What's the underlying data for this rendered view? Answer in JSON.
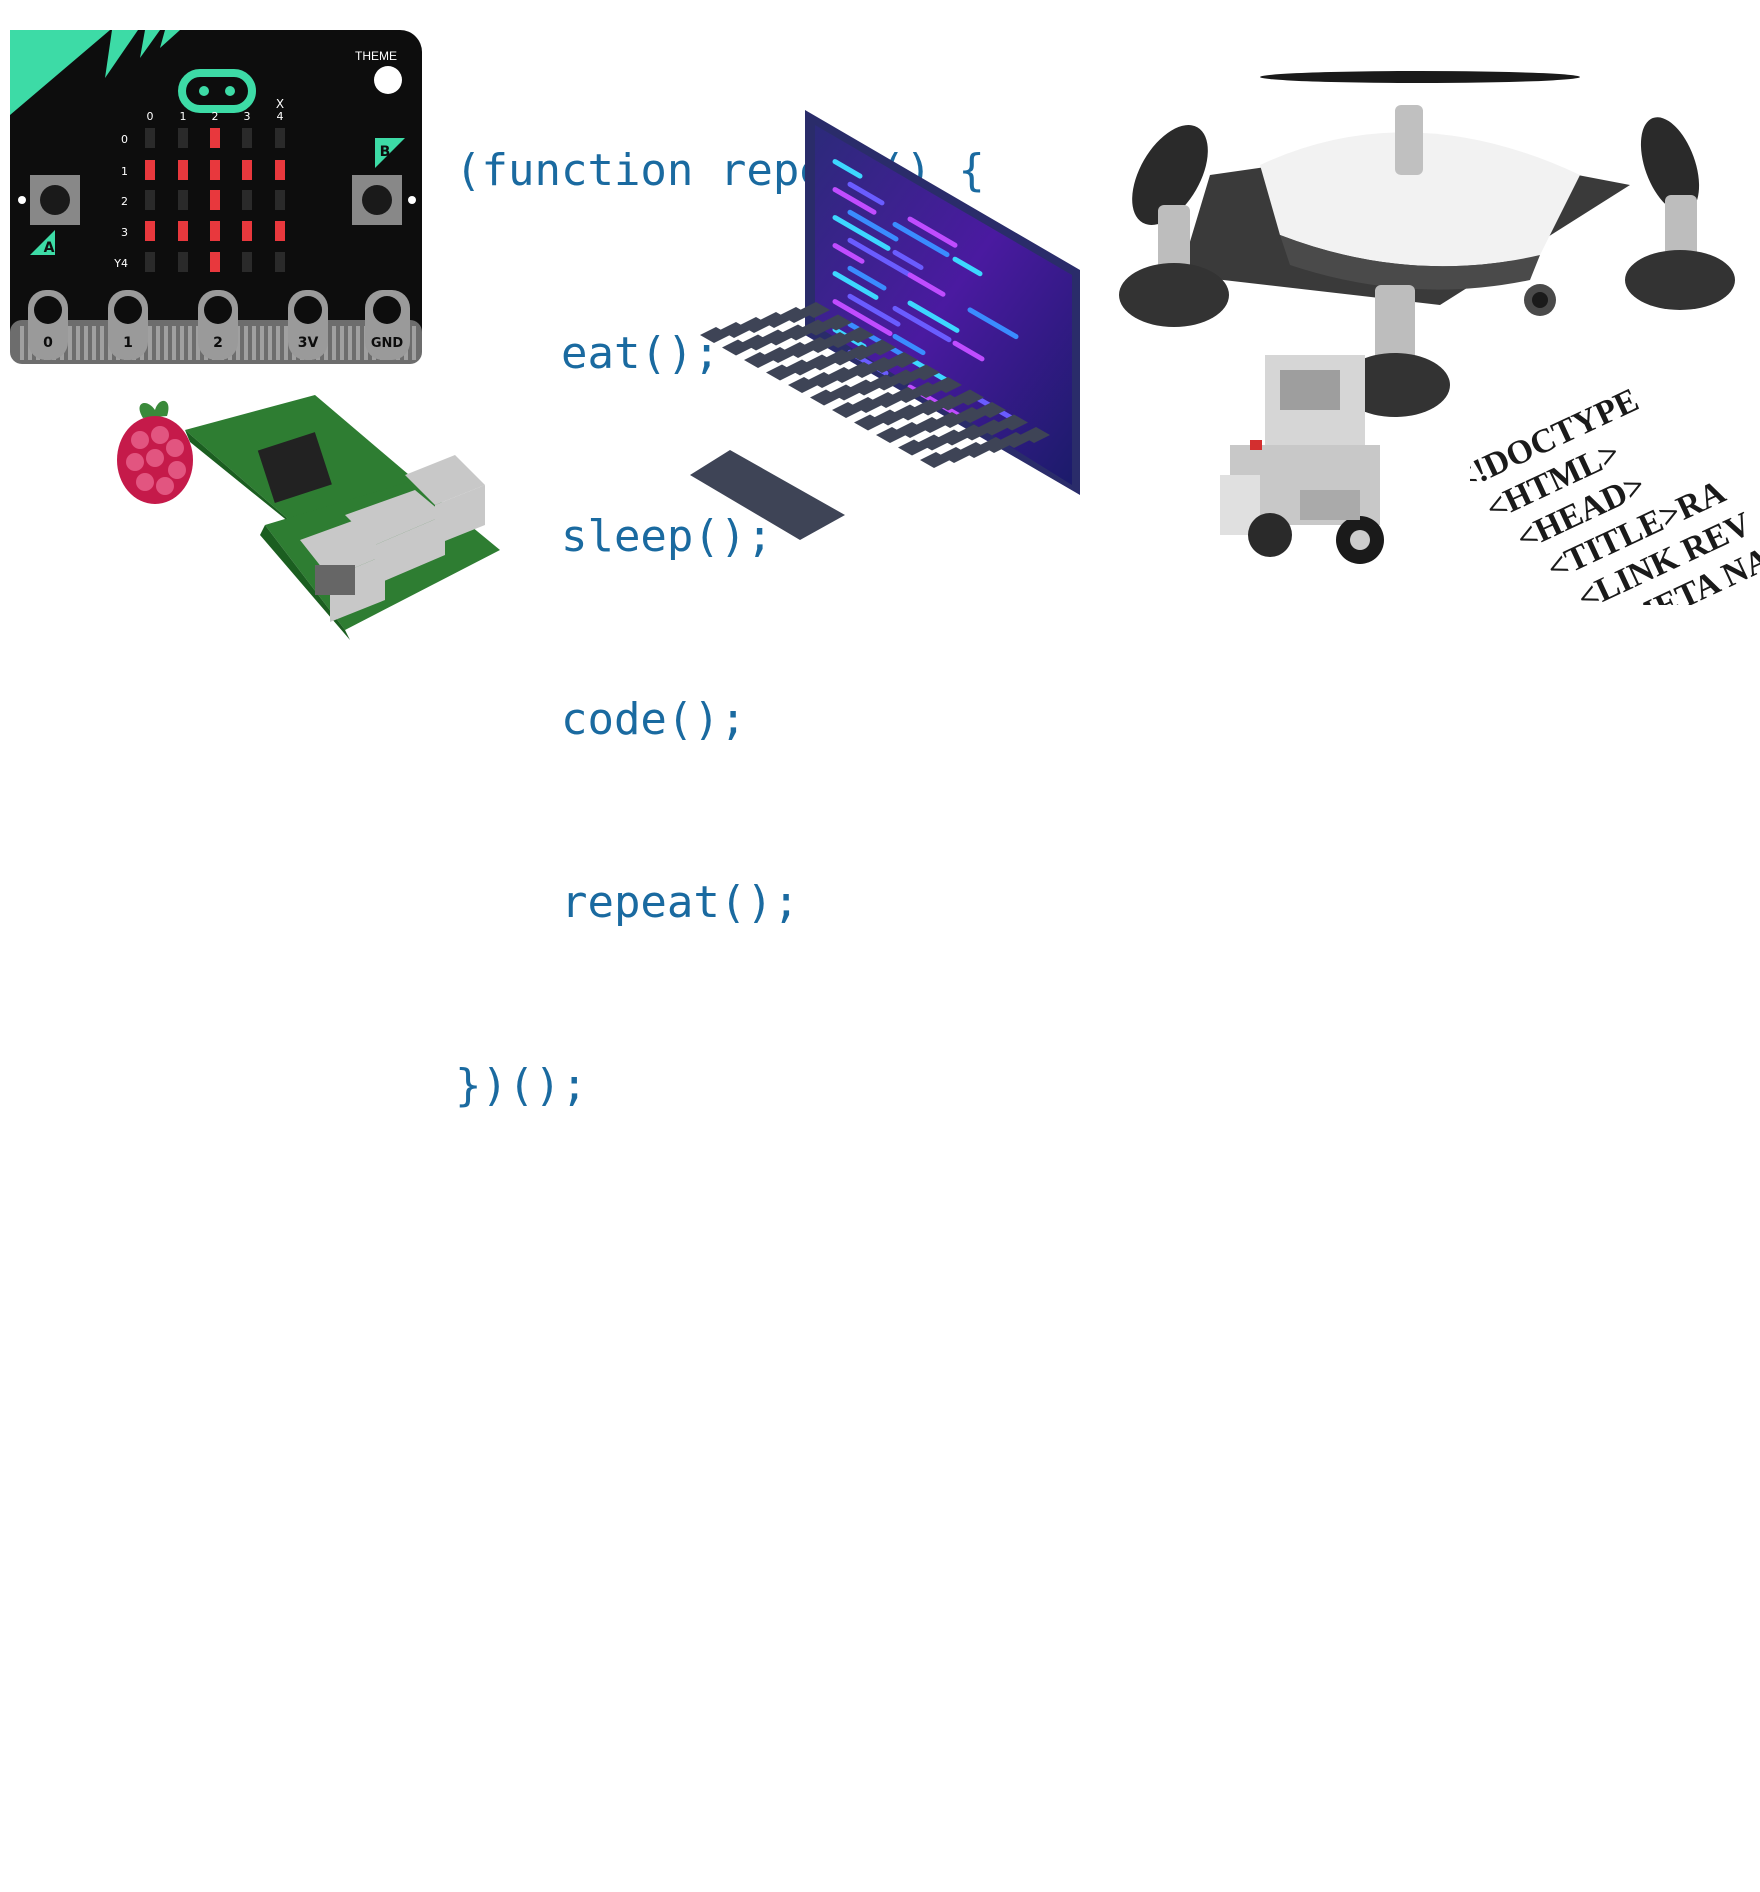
{
  "code": {
    "lines": [
      "(function repeat() {",
      "    eat();",
      "    sleep();",
      "    code();",
      "    repeat();",
      "})();"
    ],
    "color": "#1a6aa0"
  },
  "microbit": {
    "theme_label": "THEME",
    "button_a": "A",
    "button_b": "B",
    "col_labels": [
      "0",
      "1",
      "2",
      "3",
      "4"
    ],
    "x_label": "X",
    "row_labels": [
      "0",
      "1",
      "2",
      "3",
      "Y4"
    ],
    "pins": [
      "0",
      "1",
      "2",
      "3V",
      "GND"
    ],
    "accent": "#3ddba6",
    "led_color": "#e8383d"
  },
  "html_tags": [
    "<!DOCTYPE",
    "<HTML>",
    "<HEAD>",
    "<TITLE>RA",
    "<LINK REV",
    "<META NAM"
  ]
}
